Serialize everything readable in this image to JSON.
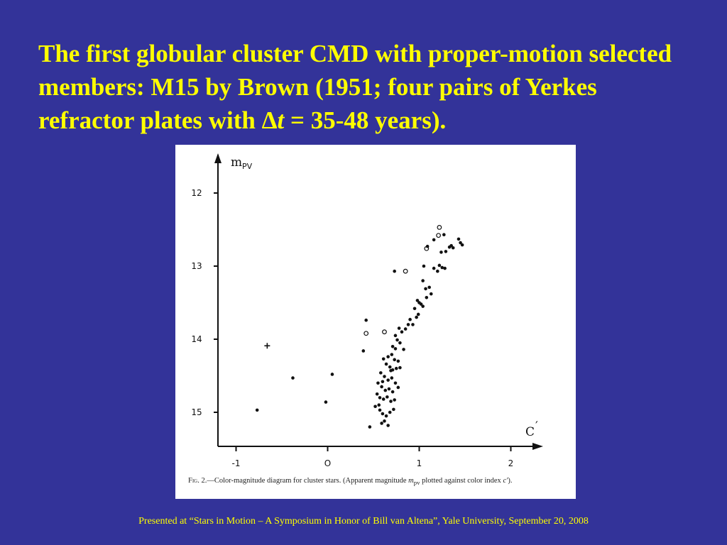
{
  "slide": {
    "title_part1": "The first globular cluster CMD with proper-motion selected members: M15 by Brown (1951; four pairs of Yerkes refractor plates with ",
    "title_delta": "Δ",
    "title_t": "t",
    "title_part2": " = 35-48 years).",
    "footer": "Presented at “Stars in Motion – A Symposium in Honor of Bill van Altena”, Yale University, September 20, 2008",
    "colors": {
      "background": "#333399",
      "title_text": "#ffff00",
      "footer_text": "#ffff00",
      "figure_bg": "#ffffff"
    }
  },
  "caption": {
    "fig": "Fig. 2.",
    "text_a": "—Color-magnitude diagram for cluster stars.  (Apparent magnitude ",
    "m_sym": "m",
    "m_sub": "pv",
    "text_b": " plotted against color index ",
    "c_sym": "c′",
    "text_c": ")."
  },
  "chart_data": {
    "type": "scatter",
    "title": "",
    "xlabel_main": "C",
    "xlabel_prime": "′",
    "ylabel_main": "m",
    "ylabel_sub": "PV",
    "xlim": [
      -1.05,
      2.4
    ],
    "ylim": [
      15.5,
      11.5
    ],
    "y_inverted": true,
    "grid": false,
    "xticks": [
      -1,
      0,
      1,
      2
    ],
    "xtick_labels": [
      "-1",
      "O",
      "1",
      "2"
    ],
    "yticks": [
      12,
      13,
      14,
      15
    ],
    "ytick_labels": [
      "12",
      "13",
      "14",
      "15"
    ],
    "series": [
      {
        "marker": "filled-dot",
        "points": [
          [
            -0.77,
            14.97
          ],
          [
            -0.38,
            14.53
          ],
          [
            -0.02,
            14.86
          ],
          [
            0.05,
            14.48
          ],
          [
            0.39,
            14.16
          ],
          [
            0.42,
            13.74
          ],
          [
            0.73,
            13.07
          ],
          [
            1.27,
            12.57
          ],
          [
            1.09,
            12.73
          ],
          [
            1.16,
            12.64
          ],
          [
            1.24,
            12.81
          ],
          [
            1.29,
            12.8
          ],
          [
            1.33,
            12.74
          ],
          [
            1.35,
            12.72
          ],
          [
            1.37,
            12.75
          ],
          [
            1.43,
            12.63
          ],
          [
            1.45,
            12.68
          ],
          [
            1.47,
            12.71
          ],
          [
            1.22,
            12.99
          ],
          [
            1.25,
            13.02
          ],
          [
            1.28,
            13.03
          ],
          [
            1.16,
            13.03
          ],
          [
            1.2,
            13.07
          ],
          [
            1.05,
            13.0
          ],
          [
            1.04,
            13.2
          ],
          [
            1.07,
            13.31
          ],
          [
            1.11,
            13.29
          ],
          [
            1.13,
            13.38
          ],
          [
            1.08,
            13.43
          ],
          [
            0.98,
            13.47
          ],
          [
            1.0,
            13.5
          ],
          [
            1.02,
            13.52
          ],
          [
            1.04,
            13.55
          ],
          [
            0.95,
            13.58
          ],
          [
            0.99,
            13.66
          ],
          [
            0.97,
            13.7
          ],
          [
            0.9,
            13.73
          ],
          [
            0.93,
            13.8
          ],
          [
            0.85,
            13.86
          ],
          [
            0.88,
            13.8
          ],
          [
            0.78,
            13.85
          ],
          [
            0.81,
            13.9
          ],
          [
            0.74,
            13.95
          ],
          [
            0.76,
            14.01
          ],
          [
            0.79,
            14.05
          ],
          [
            0.71,
            14.1
          ],
          [
            0.74,
            14.13
          ],
          [
            0.83,
            14.14
          ],
          [
            0.66,
            14.24
          ],
          [
            0.7,
            14.21
          ],
          [
            0.73,
            14.28
          ],
          [
            0.77,
            14.3
          ],
          [
            0.61,
            14.27
          ],
          [
            0.64,
            14.34
          ],
          [
            0.68,
            14.38
          ],
          [
            0.71,
            14.42
          ],
          [
            0.75,
            14.4
          ],
          [
            0.79,
            14.39
          ],
          [
            0.58,
            14.46
          ],
          [
            0.62,
            14.51
          ],
          [
            0.66,
            14.56
          ],
          [
            0.7,
            14.53
          ],
          [
            0.74,
            14.6
          ],
          [
            0.55,
            14.6
          ],
          [
            0.59,
            14.65
          ],
          [
            0.63,
            14.7
          ],
          [
            0.67,
            14.68
          ],
          [
            0.71,
            14.72
          ],
          [
            0.77,
            14.66
          ],
          [
            0.54,
            14.75
          ],
          [
            0.57,
            14.8
          ],
          [
            0.61,
            14.82
          ],
          [
            0.65,
            14.79
          ],
          [
            0.69,
            14.85
          ],
          [
            0.73,
            14.83
          ],
          [
            0.52,
            14.92
          ],
          [
            0.57,
            14.97
          ],
          [
            0.6,
            15.02
          ],
          [
            0.64,
            15.05
          ],
          [
            0.68,
            15.0
          ],
          [
            0.72,
            14.96
          ],
          [
            0.62,
            15.12
          ],
          [
            0.66,
            15.18
          ],
          [
            0.46,
            15.2
          ],
          [
            0.59,
            15.15
          ],
          [
            0.69,
            14.43
          ],
          [
            0.6,
            14.58
          ],
          [
            0.56,
            14.9
          ]
        ]
      },
      {
        "marker": "open-circle",
        "points": [
          [
            1.22,
            12.47
          ],
          [
            1.21,
            12.58
          ],
          [
            1.08,
            12.76
          ],
          [
            0.85,
            13.07
          ],
          [
            0.62,
            13.9
          ],
          [
            0.42,
            13.92
          ]
        ]
      },
      {
        "marker": "plus",
        "points": [
          [
            -0.66,
            14.09
          ]
        ]
      }
    ]
  }
}
